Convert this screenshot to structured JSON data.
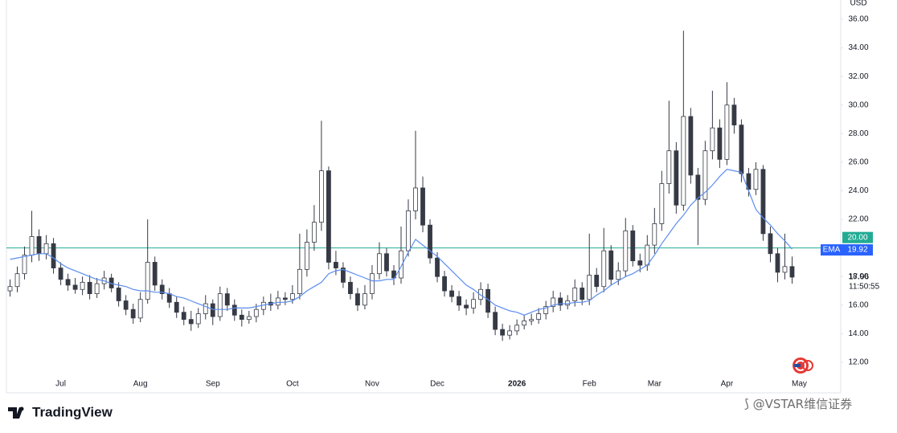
{
  "brand": "TradingView",
  "watermark": "@VSTAR维信证券",
  "chart_data": {
    "type": "candlestick",
    "currency": "USD",
    "categories": [
      null,
      null,
      null,
      null,
      null,
      null,
      null,
      "Jul",
      null,
      null,
      null,
      null,
      null,
      null,
      null,
      null,
      null,
      null,
      "Aug",
      null,
      null,
      null,
      null,
      null,
      null,
      null,
      null,
      null,
      "Sep",
      null,
      null,
      null,
      null,
      null,
      null,
      null,
      null,
      null,
      null,
      "Oct",
      null,
      null,
      null,
      null,
      null,
      null,
      null,
      null,
      null,
      null,
      "Nov",
      null,
      null,
      null,
      null,
      null,
      null,
      null,
      null,
      "Dec",
      null,
      null,
      null,
      null,
      null,
      null,
      null,
      null,
      null,
      null,
      "2026",
      null,
      null,
      null,
      null,
      null,
      null,
      null,
      null,
      null,
      "Feb",
      null,
      null,
      null,
      null,
      null,
      null,
      null,
      null,
      "Mar",
      null,
      null,
      null,
      null,
      null,
      null,
      null,
      null,
      null,
      "Apr",
      null,
      null,
      null,
      null,
      null,
      null,
      null,
      null,
      null,
      "May"
    ],
    "open": [
      17.0,
      17.3,
      18.2,
      19.5,
      20.8,
      19.6,
      20.3,
      18.6,
      17.8,
      17.4,
      17.1,
      17.6,
      16.8,
      17.5,
      17.9,
      17.2,
      16.3,
      15.7,
      15.1,
      16.4,
      19.0,
      17.4,
      16.8,
      16.2,
      15.5,
      15.0,
      14.7,
      15.4,
      16.1,
      15.2,
      16.8,
      16.0,
      15.3,
      15.0,
      15.2,
      15.7,
      16.2,
      16.0,
      16.5,
      16.4,
      16.8,
      18.5,
      20.4,
      21.8,
      25.4,
      19.0,
      18.6,
      17.6,
      16.8,
      16.0,
      16.8,
      18.2,
      19.6,
      18.4,
      17.9,
      19.8,
      22.6,
      24.2,
      21.6,
      19.3,
      18.0,
      17.0,
      16.6,
      16.0,
      15.8,
      16.4,
      17.1,
      15.5,
      14.3,
      13.9,
      14.2,
      14.6,
      14.9,
      15.0,
      15.4,
      15.9,
      16.5,
      16.0,
      16.3,
      17.2,
      16.4,
      18.1,
      17.3,
      19.8,
      17.8,
      18.4,
      21.2,
      19.1,
      18.8,
      20.2,
      21.7,
      24.5,
      26.8,
      23.0,
      29.2,
      25.1,
      23.4,
      26.8,
      28.4,
      26.2,
      30.0,
      28.6,
      25.2,
      24.1,
      25.5,
      21.0,
      19.6,
      18.3,
      18.7,
      null
    ],
    "high": [
      17.8,
      18.7,
      20.1,
      22.6,
      21.3,
      20.9,
      20.7,
      19.0,
      18.2,
      17.9,
      18.0,
      18.1,
      17.9,
      18.4,
      18.2,
      17.6,
      16.7,
      16.1,
      16.9,
      22.0,
      19.4,
      17.8,
      17.2,
      16.6,
      15.9,
      15.6,
      15.8,
      16.7,
      16.4,
      17.3,
      17.2,
      16.4,
      15.7,
      15.6,
      16.1,
      16.6,
      16.8,
      17.0,
      16.9,
      17.4,
      21.0,
      21.3,
      23.0,
      28.9,
      25.7,
      19.8,
      19.0,
      18.0,
      17.2,
      17.4,
      18.8,
      20.4,
      20.0,
      18.8,
      21.5,
      23.4,
      28.2,
      25.0,
      22.0,
      19.7,
      18.4,
      17.4,
      17.0,
      16.4,
      16.9,
      17.6,
      17.5,
      15.9,
      14.7,
      14.6,
      15.0,
      15.3,
      15.4,
      15.8,
      16.3,
      17.0,
      16.9,
      16.7,
      17.8,
      17.6,
      21.0,
      18.6,
      21.4,
      20.2,
      19.0,
      22.1,
      21.6,
      19.6,
      20.9,
      22.8,
      25.4,
      30.3,
      27.4,
      35.2,
      29.8,
      25.6,
      27.5,
      31.0,
      29.0,
      31.6,
      30.5,
      29.0,
      25.6,
      26.0,
      25.8,
      21.5,
      20.0,
      21.0,
      19.4,
      null
    ],
    "low": [
      16.6,
      16.9,
      17.8,
      19.0,
      19.1,
      19.2,
      18.2,
      17.4,
      17.0,
      16.8,
      16.7,
      16.4,
      16.5,
      17.1,
      16.9,
      15.9,
      15.3,
      14.7,
      14.8,
      16.1,
      17.0,
      16.4,
      15.8,
      15.1,
      14.6,
      14.2,
      14.4,
      15.0,
      14.6,
      14.9,
      15.6,
      14.9,
      14.5,
      14.7,
      14.8,
      15.3,
      15.6,
      15.7,
      16.0,
      16.1,
      16.4,
      18.0,
      19.8,
      21.2,
      18.5,
      18.1,
      17.2,
      16.4,
      15.6,
      15.7,
      16.4,
      17.8,
      18.0,
      17.4,
      17.5,
      19.4,
      22.0,
      21.1,
      18.9,
      17.6,
      16.6,
      16.2,
      15.6,
      15.3,
      15.4,
      16.0,
      15.1,
      13.9,
      13.5,
      13.6,
      13.9,
      14.3,
      14.6,
      14.7,
      15.0,
      15.5,
      15.6,
      15.7,
      15.9,
      16.0,
      16.0,
      16.9,
      16.9,
      17.4,
      17.4,
      18.0,
      18.7,
      18.3,
      18.4,
      19.6,
      21.2,
      23.8,
      22.4,
      22.6,
      24.5,
      20.2,
      23.0,
      26.2,
      25.6,
      25.8,
      28.0,
      24.6,
      23.6,
      23.7,
      20.5,
      19.0,
      17.6,
      17.8,
      17.5,
      null
    ],
    "close": [
      17.3,
      18.2,
      19.5,
      20.8,
      19.6,
      20.3,
      18.6,
      17.8,
      17.4,
      17.1,
      17.6,
      16.8,
      17.5,
      17.9,
      17.2,
      16.3,
      15.7,
      15.1,
      16.4,
      19.0,
      17.4,
      16.8,
      16.2,
      15.5,
      15.0,
      14.7,
      15.4,
      16.1,
      15.2,
      16.8,
      16.0,
      15.3,
      15.0,
      15.2,
      15.7,
      16.2,
      16.0,
      16.5,
      16.4,
      16.8,
      18.5,
      20.4,
      21.8,
      25.4,
      19.0,
      18.6,
      17.6,
      16.8,
      16.0,
      16.8,
      18.2,
      19.6,
      18.4,
      17.9,
      19.8,
      22.6,
      24.2,
      21.6,
      19.3,
      18.0,
      17.0,
      16.6,
      16.0,
      15.8,
      16.4,
      17.1,
      15.5,
      14.3,
      13.9,
      14.2,
      14.6,
      14.9,
      15.0,
      15.4,
      15.9,
      16.5,
      16.0,
      16.3,
      17.2,
      16.4,
      18.1,
      17.3,
      19.8,
      17.8,
      18.4,
      21.2,
      19.1,
      18.8,
      20.2,
      21.7,
      24.5,
      26.8,
      23.0,
      29.2,
      25.1,
      23.4,
      26.8,
      28.4,
      26.2,
      30.0,
      28.6,
      25.2,
      24.1,
      25.5,
      21.0,
      19.6,
      18.3,
      18.7,
      17.96,
      null
    ],
    "ema": {
      "name": "EMA",
      "color": "#5b8def",
      "label_color": "#2962ff",
      "values": [
        19.2,
        19.3,
        19.4,
        19.5,
        19.6,
        19.6,
        19.3,
        18.9,
        18.6,
        18.4,
        18.2,
        18.0,
        17.8,
        17.7,
        17.5,
        17.4,
        17.3,
        17.1,
        17.0,
        17.0,
        16.9,
        16.9,
        16.8,
        16.6,
        16.5,
        16.3,
        16.1,
        15.9,
        15.7,
        15.7,
        15.7,
        15.8,
        15.8,
        15.8,
        15.9,
        16.0,
        16.1,
        16.2,
        16.2,
        16.3,
        16.6,
        17.0,
        17.3,
        17.6,
        18.2,
        18.4,
        18.5,
        18.3,
        18.1,
        17.9,
        17.7,
        17.7,
        17.8,
        17.8,
        18.7,
        19.7,
        20.6,
        20.2,
        19.8,
        19.4,
        18.9,
        18.4,
        17.9,
        17.4,
        17.1,
        16.7,
        16.4,
        16.0,
        15.8,
        15.6,
        15.5,
        15.3,
        15.5,
        15.7,
        15.8,
        16.0,
        16.1,
        16.1,
        16.2,
        16.2,
        16.3,
        16.7,
        17.0,
        17.4,
        17.7,
        18.0,
        18.2,
        18.5,
        18.8,
        19.5,
        20.3,
        21.0,
        21.7,
        22.3,
        23.0,
        23.5,
        23.9,
        24.4,
        25.0,
        25.5,
        25.4,
        25.3,
        24.0,
        22.7,
        22.1,
        21.6,
        21.0,
        20.5,
        19.92,
        null
      ]
    },
    "price_line": {
      "value": 20,
      "label": "20.00",
      "color": "#22ab94"
    },
    "countdown": "11:50:55",
    "up_color": "#ffffff",
    "down_color": "#363a45",
    "outline_color": "#363a45",
    "ylim": [
      9.92,
      37.35
    ],
    "yticks": [
      {
        "value": 12,
        "label": "12.00"
      },
      {
        "value": 14,
        "label": "14.00"
      },
      {
        "value": 16,
        "label": "16.00"
      },
      {
        "value": 18,
        "label": "18.00"
      },
      {
        "value": 20,
        "label": "20.00"
      },
      {
        "value": 22,
        "label": "22.00"
      },
      {
        "value": 24,
        "label": "24.00"
      },
      {
        "value": 26,
        "label": "26.00"
      },
      {
        "value": 28,
        "label": "28.00"
      },
      {
        "value": 30,
        "label": "30.00"
      },
      {
        "value": 32,
        "label": "32.00"
      },
      {
        "value": 34,
        "label": "34.00"
      },
      {
        "value": 36,
        "label": "36.00"
      }
    ],
    "grid": false
  }
}
